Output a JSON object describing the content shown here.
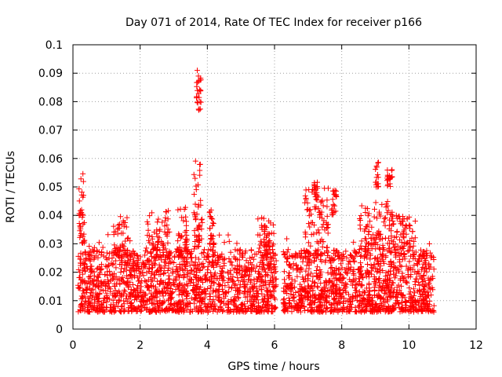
{
  "chart_data": {
    "type": "scatter",
    "title": "Day 071 of 2014, Rate Of TEC Index for receiver p166",
    "xlabel": "GPS time / hours",
    "ylabel": "ROTI / TECUs",
    "xlim": [
      0,
      12
    ],
    "ylim": [
      0,
      0.1
    ],
    "xticks": [
      0,
      2,
      4,
      6,
      8,
      10,
      12
    ],
    "xtick_labels": [
      "0",
      "2",
      "4",
      "6",
      "8",
      "10",
      "12"
    ],
    "yticks": [
      0,
      0.01,
      0.02,
      0.03,
      0.04,
      0.05,
      0.06,
      0.07,
      0.08,
      0.09,
      0.1
    ],
    "ytick_labels": [
      "0",
      "0.01",
      "0.02",
      "0.03",
      "0.04",
      "0.05",
      "0.06",
      "0.07",
      "0.08",
      "0.09",
      "0.1"
    ],
    "grid": true,
    "marker": "+",
    "color": "#ff0000",
    "series": [
      {
        "name": "ROTI",
        "segments": [
          {
            "x_start": 0.15,
            "x_end": 6.05,
            "base_min": 0.006,
            "base_max": 0.028
          },
          {
            "x_start": 6.25,
            "x_end": 10.75,
            "base_min": 0.006,
            "base_max": 0.028
          }
        ],
        "bursts": [
          {
            "x": [
              0.18,
              0.35
            ],
            "y": [
              0.03,
              0.055
            ]
          },
          {
            "x": [
              1.2,
              1.7
            ],
            "y": [
              0.025,
              0.04
            ]
          },
          {
            "x": [
              2.2,
              2.9
            ],
            "y": [
              0.025,
              0.042
            ]
          },
          {
            "x": [
              3.1,
              3.4
            ],
            "y": [
              0.025,
              0.043
            ]
          },
          {
            "x": [
              3.6,
              3.85
            ],
            "y": [
              0.028,
              0.06
            ]
          },
          {
            "x": [
              3.65,
              3.82
            ],
            "y": [
              0.077,
              0.091
            ]
          },
          {
            "x": [
              4.05,
              4.2
            ],
            "y": [
              0.028,
              0.043
            ]
          },
          {
            "x": [
              5.5,
              6.0
            ],
            "y": [
              0.025,
              0.04
            ]
          },
          {
            "x": [
              6.9,
              7.6
            ],
            "y": [
              0.025,
              0.05
            ]
          },
          {
            "x": [
              7.15,
              7.3
            ],
            "y": [
              0.045,
              0.052
            ]
          },
          {
            "x": [
              7.7,
              7.85
            ],
            "y": [
              0.04,
              0.049
            ]
          },
          {
            "x": [
              8.5,
              9.5
            ],
            "y": [
              0.028,
              0.045
            ]
          },
          {
            "x": [
              9.0,
              9.1
            ],
            "y": [
              0.05,
              0.059
            ]
          },
          {
            "x": [
              9.35,
              9.5
            ],
            "y": [
              0.05,
              0.057
            ]
          },
          {
            "x": [
              9.5,
              10.2
            ],
            "y": [
              0.025,
              0.04
            ]
          }
        ]
      }
    ]
  }
}
